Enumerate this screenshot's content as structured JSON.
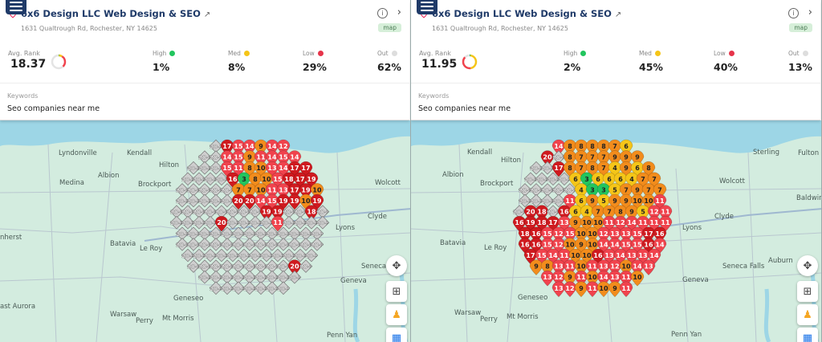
{
  "colors": {
    "high": "#22c55e",
    "med": "#f5c518",
    "medDark": "#f28c1c",
    "low": "#f0434d",
    "lowDark": "#cf1a1f",
    "out": "#d0d0d0",
    "brand": "#1f3a68"
  },
  "panels": [
    {
      "business": {
        "name": "6x6 Design LLC Web Design & SEO",
        "address": "1631 Qualtrough Rd, Rochester, NY 14625",
        "badge": "map"
      },
      "stats": {
        "avg_label": "Avg. Rank",
        "avg_value": "18.37",
        "high_label": "High",
        "high": "1%",
        "med_label": "Med",
        "med": "8%",
        "low_label": "Low",
        "low": "29%",
        "out_label": "Out",
        "out": "62%"
      },
      "keywords_label": "Keywords",
      "keyword": "Seo companies near me",
      "map_labels": [
        "Lyndonville",
        "Kendall",
        "Hilton",
        "Albion",
        "Medina",
        "Brockport",
        "Wolcott",
        "Clyde",
        "Lyons",
        "Batavia",
        "Le Roy",
        "Geneva",
        "Seneca",
        "Geneseo",
        "Warsaw",
        "Perry",
        "Mt Morris",
        "Penn Yan",
        "ast Aurora",
        "nherst"
      ],
      "grid": [
        [
          "20+",
          "17",
          "15",
          "14",
          "9",
          "14",
          "12"
        ],
        [
          "20+",
          "20+",
          "14",
          "15",
          "9",
          "11",
          "14",
          "15",
          "14"
        ],
        [
          "20+",
          "20+",
          "20+",
          "15",
          "11",
          "8",
          "10",
          "13",
          "14",
          "17",
          "17"
        ],
        [
          "20+",
          "20+",
          "20+",
          "20+",
          "16",
          "3",
          "8",
          "10",
          "15",
          "18",
          "17",
          "19"
        ],
        [
          "20+",
          "20+",
          "20+",
          "20+",
          "20+",
          "7",
          "7",
          "10",
          "11",
          "13",
          "17",
          "19",
          "10"
        ],
        [
          "20+",
          "20+",
          "20+",
          "20+",
          "20+",
          "20",
          "20",
          "14",
          "15",
          "19",
          "19",
          "10",
          "19"
        ],
        [
          "20+",
          "20+",
          "20+",
          "20+",
          "20+",
          "20+",
          "20+",
          "20+",
          "19",
          "19",
          "20+",
          "20+",
          "18",
          "20+"
        ],
        [
          "20+",
          "20+",
          "20+",
          "20+",
          "20",
          "20+",
          "20+",
          "20+",
          "20+",
          "11",
          "20+",
          "20+",
          "20+",
          "20+"
        ],
        [
          "20+",
          "20+",
          "20+",
          "20+",
          "20+",
          "20+",
          "20+",
          "20+",
          "20+",
          "20+",
          "20+",
          "20+",
          "20+"
        ],
        [
          "20+",
          "20+",
          "20+",
          "20+",
          "20+",
          "20+",
          "20+",
          "20+",
          "20+",
          "20+",
          "20+",
          "20+",
          "20+"
        ],
        [
          "20+",
          "20+",
          "20+",
          "20+",
          "20+",
          "20+",
          "20+",
          "20+",
          "20+",
          "20+",
          "20+",
          "20+"
        ],
        [
          "20+",
          "20+",
          "20+",
          "20+",
          "20+",
          "20+",
          "20+",
          "20+",
          "20+",
          "20",
          "20+"
        ],
        [
          "20+",
          "20+",
          "20+",
          "20+",
          "20+",
          "20+",
          "20+",
          "20+",
          "20+"
        ],
        [
          "20+",
          "20+",
          "20+",
          "20+",
          "20+",
          "20+",
          "20+"
        ]
      ]
    },
    {
      "business": {
        "name": "6x6 Design LLC Web Design & SEO",
        "address": "1631 Qualtrough Rd, Rochester, NY 14625",
        "badge": "map"
      },
      "stats": {
        "avg_label": "Avg. Rank",
        "avg_value": "11.95",
        "high_label": "High",
        "high": "2%",
        "med_label": "Med",
        "med": "45%",
        "low_label": "Low",
        "low": "40%",
        "out_label": "Out",
        "out": "13%"
      },
      "keywords_label": "Keywords",
      "keyword": "Seo companies near me",
      "map_labels": [
        "Kendall",
        "Hilton",
        "Albion",
        "Brockport",
        "Sterling",
        "Fulton",
        "Wolcott",
        "Baldwins",
        "Clyde",
        "Lyons",
        "Batavia",
        "Le Roy",
        "Seneca Falls",
        "Auburn",
        "Geneva",
        "Geneseo",
        "Warsaw",
        "Perry",
        "Mt Morris",
        "Penn Yan"
      ],
      "grid": [
        [
          "14",
          "8",
          "8",
          "8",
          "8",
          "7",
          "6"
        ],
        [
          "20",
          "20+",
          "8",
          "7",
          "7",
          "7",
          "9",
          "9",
          "9"
        ],
        [
          "20+",
          "20+",
          "17",
          "8",
          "7",
          "8",
          "7",
          "4",
          "9",
          "6",
          "8"
        ],
        [
          "20+",
          "20+",
          "20+",
          "20+",
          "6",
          "3",
          "6",
          "6",
          "6",
          "4",
          "7",
          "7"
        ],
        [
          "20+",
          "20+",
          "20+",
          "20+",
          "20+",
          "4",
          "3",
          "3",
          "5",
          "7",
          "9",
          "7",
          "7"
        ],
        [
          "20+",
          "20+",
          "20+",
          "20+",
          "11",
          "6",
          "9",
          "5",
          "9",
          "9",
          "10",
          "10",
          "11"
        ],
        [
          "20+",
          "20",
          "18",
          "20+",
          "16",
          "6",
          "4",
          "7",
          "7",
          "8",
          "9",
          "5",
          "12",
          "11"
        ],
        [
          "16",
          "19",
          "18",
          "17",
          "13",
          "9",
          "10",
          "10",
          "11",
          "12",
          "14",
          "11",
          "11",
          "11"
        ],
        [
          "18",
          "16",
          "15",
          "12",
          "15",
          "10",
          "10",
          "12",
          "13",
          "13",
          "15",
          "17",
          "16"
        ],
        [
          "16",
          "16",
          "15",
          "12",
          "10",
          "9",
          "10",
          "14",
          "14",
          "15",
          "15",
          "16",
          "14"
        ],
        [
          "17",
          "15",
          "14",
          "11",
          "10",
          "10",
          "16",
          "13",
          "14",
          "13",
          "13",
          "14"
        ],
        [
          "9",
          "8",
          "13",
          "11",
          "10",
          "11",
          "13",
          "12",
          "10",
          "14",
          "13"
        ],
        [
          "13",
          "12",
          "9",
          "11",
          "10",
          "14",
          "13",
          "11",
          "10"
        ],
        [
          "13",
          "12",
          "9",
          "11",
          "10",
          "9",
          "11"
        ]
      ]
    }
  ]
}
